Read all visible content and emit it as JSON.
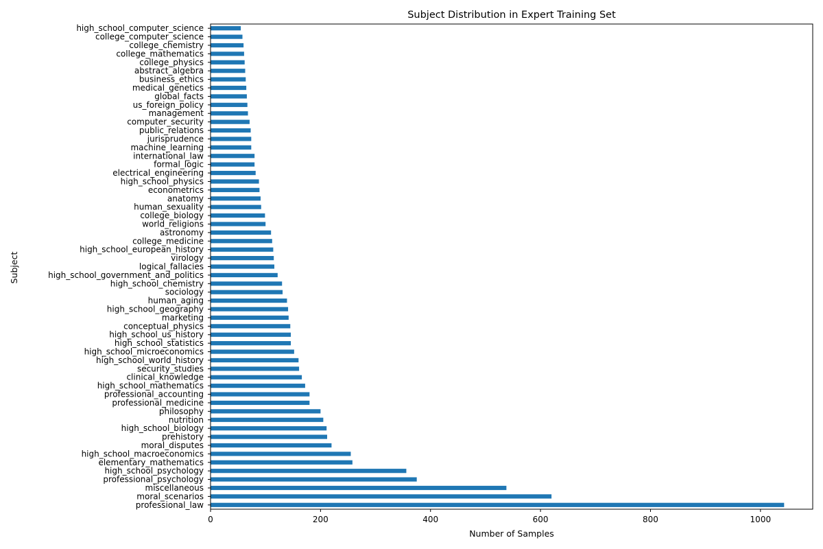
{
  "chart_data": {
    "type": "bar",
    "orientation": "horizontal",
    "title": "Subject Distribution in Expert Training Set",
    "xlabel": "Number of Samples",
    "ylabel": "Subject",
    "xlim": [
      0,
      1095
    ],
    "xticks": [
      0,
      200,
      400,
      600,
      800,
      1000
    ],
    "grid": false,
    "bar_color": "#1f77b4",
    "categories": [
      "high_school_computer_science",
      "college_computer_science",
      "college_chemistry",
      "college_mathematics",
      "college_physics",
      "abstract_algebra",
      "business_ethics",
      "medical_genetics",
      "global_facts",
      "us_foreign_policy",
      "management",
      "computer_security",
      "public_relations",
      "jurisprudence",
      "machine_learning",
      "international_law",
      "formal_logic",
      "electrical_engineering",
      "high_school_physics",
      "econometrics",
      "anatomy",
      "human_sexuality",
      "college_biology",
      "world_religions",
      "astronomy",
      "college_medicine",
      "high_school_european_history",
      "virology",
      "logical_fallacies",
      "high_school_government_and_politics",
      "high_school_chemistry",
      "sociology",
      "human_aging",
      "high_school_geography",
      "marketing",
      "conceptual_physics",
      "high_school_us_history",
      "high_school_statistics",
      "high_school_microeconomics",
      "high_school_world_history",
      "security_studies",
      "clinical_knowledge",
      "high_school_mathematics",
      "professional_accounting",
      "professional_medicine",
      "philosophy",
      "nutrition",
      "high_school_biology",
      "prehistory",
      "moral_disputes",
      "high_school_macroeconomics",
      "elementary_mathematics",
      "high_school_psychology",
      "professional_psychology",
      "miscellaneous",
      "moral_scenarios",
      "professional_law"
    ],
    "values": [
      55,
      58,
      60,
      61,
      62,
      63,
      64,
      65,
      66,
      67,
      68,
      71,
      73,
      74,
      74,
      80,
      80,
      82,
      88,
      89,
      91,
      92,
      99,
      100,
      110,
      112,
      114,
      115,
      116,
      122,
      130,
      131,
      139,
      141,
      142,
      145,
      146,
      146,
      152,
      160,
      161,
      166,
      172,
      180,
      180,
      200,
      205,
      211,
      212,
      220,
      255,
      258,
      356,
      375,
      538,
      620,
      1043
    ]
  }
}
